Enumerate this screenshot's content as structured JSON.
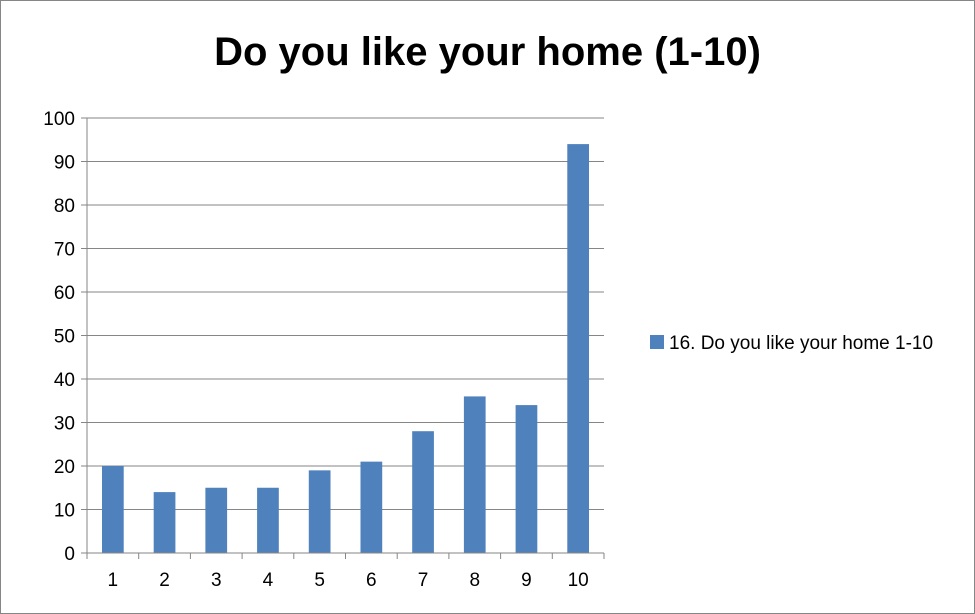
{
  "chart_data": {
    "type": "bar",
    "title": "Do you like your home (1-10)",
    "categories": [
      "1",
      "2",
      "3",
      "4",
      "5",
      "6",
      "7",
      "8",
      "9",
      "10"
    ],
    "series": [
      {
        "name": "16.  Do you like your home 1-10",
        "values": [
          20,
          14,
          15,
          15,
          19,
          21,
          28,
          36,
          34,
          94
        ],
        "color": "#4f81bd"
      }
    ],
    "ylim": [
      0,
      100
    ],
    "yticks": [
      "0",
      "10",
      "20",
      "30",
      "40",
      "50",
      "60",
      "70",
      "80",
      "90",
      "100"
    ],
    "grid": true,
    "legend_position": "right"
  }
}
